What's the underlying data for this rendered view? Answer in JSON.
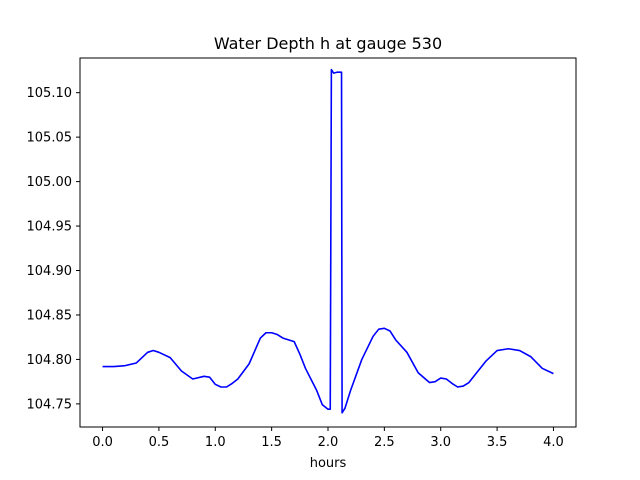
{
  "chart_data": {
    "type": "line",
    "title": "Water Depth h at gauge 530",
    "xlabel": "hours",
    "ylabel": "",
    "xlim": [
      -0.2,
      4.2
    ],
    "ylim": [
      104.724,
      105.139
    ],
    "grid": false,
    "xticks": [
      0.0,
      0.5,
      1.0,
      1.5,
      2.0,
      2.5,
      3.0,
      3.5,
      4.0
    ],
    "xtick_labels": [
      "0.0",
      "0.5",
      "1.0",
      "1.5",
      "2.0",
      "2.5",
      "3.0",
      "3.5",
      "4.0"
    ],
    "yticks": [
      104.75,
      104.8,
      104.85,
      104.9,
      104.95,
      105.0,
      105.05,
      105.1
    ],
    "ytick_labels": [
      "104.75",
      "104.80",
      "104.85",
      "104.90",
      "104.95",
      "105.00",
      "105.05",
      "105.10"
    ],
    "series": [
      {
        "color": "#0000ff",
        "x": [
          0.0,
          0.1,
          0.2,
          0.3,
          0.4,
          0.45,
          0.5,
          0.6,
          0.7,
          0.8,
          0.9,
          0.95,
          1.0,
          1.05,
          1.1,
          1.15,
          1.2,
          1.3,
          1.4,
          1.45,
          1.5,
          1.55,
          1.6,
          1.7,
          1.75,
          1.8,
          1.9,
          1.95,
          2.0,
          2.02,
          2.03,
          2.05,
          2.08,
          2.1,
          2.12,
          2.125,
          2.15,
          2.2,
          2.3,
          2.4,
          2.45,
          2.5,
          2.55,
          2.6,
          2.7,
          2.8,
          2.9,
          2.95,
          3.0,
          3.05,
          3.1,
          3.15,
          3.2,
          3.25,
          3.3,
          3.4,
          3.5,
          3.6,
          3.7,
          3.8,
          3.9,
          4.0
        ],
        "y": [
          104.792,
          104.792,
          104.793,
          104.796,
          104.808,
          104.81,
          104.808,
          104.802,
          104.787,
          104.778,
          104.781,
          104.78,
          104.772,
          104.769,
          104.769,
          104.773,
          104.778,
          104.795,
          104.824,
          104.83,
          104.83,
          104.828,
          104.824,
          104.82,
          104.806,
          104.79,
          104.765,
          104.749,
          104.744,
          104.744,
          105.126,
          105.122,
          105.123,
          105.123,
          105.123,
          104.74,
          104.745,
          104.765,
          104.8,
          104.826,
          104.834,
          104.835,
          104.832,
          104.822,
          104.808,
          104.785,
          104.774,
          104.775,
          104.779,
          104.778,
          104.773,
          104.769,
          104.77,
          104.774,
          104.782,
          104.798,
          104.81,
          104.812,
          104.81,
          104.803,
          104.79,
          104.784
        ]
      }
    ]
  }
}
